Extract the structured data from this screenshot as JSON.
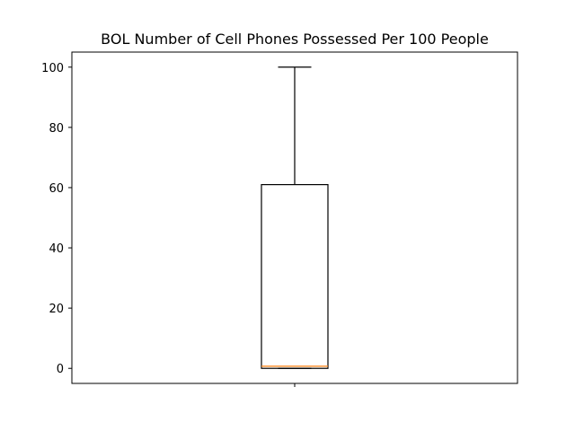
{
  "chart_data": {
    "type": "box",
    "title": "BOL Number of Cell Phones Possessed Per 100 People",
    "xlabel": "",
    "ylabel": "",
    "ylim": [
      -5,
      105
    ],
    "y_ticks": [
      0,
      20,
      40,
      60,
      80,
      100
    ],
    "y_tick_labels": [
      "0",
      "20",
      "40",
      "60",
      "80",
      "100"
    ],
    "grid": false,
    "series": [
      {
        "min": 0,
        "q1": 0,
        "median": 0.7,
        "q3": 61,
        "max": 100
      }
    ],
    "colors": {
      "box": "#000000",
      "whisker": "#000000",
      "median": "#ff7f0e",
      "axes": "#000000",
      "background": "#ffffff"
    }
  }
}
